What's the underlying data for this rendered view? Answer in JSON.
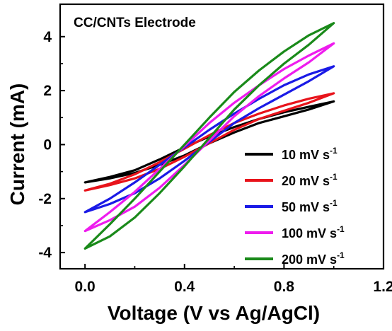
{
  "chart_data": {
    "type": "line",
    "title": "CC/CNTs Electrode",
    "xlabel": "Voltage (V vs Ag/AgCl)",
    "ylabel": "Current (mA)",
    "xlim": [
      -0.1,
      1.2
    ],
    "ylim": [
      -4.6,
      5.2
    ],
    "x_ticks": [
      0.0,
      0.4,
      0.8,
      1.2
    ],
    "x_tick_labels": [
      "0.0",
      "0.4",
      "0.8",
      "1.2"
    ],
    "y_ticks": [
      -4,
      -2,
      0,
      2,
      4
    ],
    "y_tick_labels": [
      "-4",
      "-2",
      "0",
      "2",
      "4"
    ],
    "grid": false,
    "legend_position": "bottom-right",
    "series": [
      {
        "name": "10 mV s-1",
        "label_main": "10 mV s",
        "label_sup": "-1",
        "color": "#000000",
        "anodic": [
          [
            0.0,
            -1.4
          ],
          [
            0.1,
            -1.2
          ],
          [
            0.2,
            -0.95
          ],
          [
            0.3,
            -0.55
          ],
          [
            0.4,
            -0.1
          ],
          [
            0.5,
            0.3
          ],
          [
            0.6,
            0.65
          ],
          [
            0.7,
            0.95
          ],
          [
            0.8,
            1.2
          ],
          [
            0.9,
            1.4
          ],
          [
            1.0,
            1.6
          ]
        ],
        "cathodic": [
          [
            1.0,
            1.6
          ],
          [
            0.9,
            1.3
          ],
          [
            0.8,
            1.05
          ],
          [
            0.7,
            0.8
          ],
          [
            0.6,
            0.45
          ],
          [
            0.5,
            0.05
          ],
          [
            0.4,
            -0.4
          ],
          [
            0.3,
            -0.75
          ],
          [
            0.2,
            -1.05
          ],
          [
            0.1,
            -1.25
          ],
          [
            0.0,
            -1.4
          ]
        ]
      },
      {
        "name": "20 mV s-1",
        "label_main": "20 mV s",
        "label_sup": "-1",
        "color": "#e8131b",
        "anodic": [
          [
            0.0,
            -1.7
          ],
          [
            0.1,
            -1.45
          ],
          [
            0.2,
            -1.1
          ],
          [
            0.3,
            -0.65
          ],
          [
            0.4,
            -0.15
          ],
          [
            0.5,
            0.35
          ],
          [
            0.6,
            0.8
          ],
          [
            0.7,
            1.15
          ],
          [
            0.8,
            1.45
          ],
          [
            0.9,
            1.7
          ],
          [
            1.0,
            1.9
          ]
        ],
        "cathodic": [
          [
            1.0,
            1.9
          ],
          [
            0.9,
            1.55
          ],
          [
            0.8,
            1.25
          ],
          [
            0.7,
            0.95
          ],
          [
            0.6,
            0.55
          ],
          [
            0.5,
            0.05
          ],
          [
            0.4,
            -0.45
          ],
          [
            0.3,
            -0.9
          ],
          [
            0.2,
            -1.25
          ],
          [
            0.1,
            -1.5
          ],
          [
            0.0,
            -1.7
          ]
        ]
      },
      {
        "name": "50 mV s-1",
        "label_main": "50 mV s",
        "label_sup": "-1",
        "color": "#1a1ae6",
        "anodic": [
          [
            0.0,
            -2.5
          ],
          [
            0.1,
            -2.0
          ],
          [
            0.2,
            -1.4
          ],
          [
            0.3,
            -0.75
          ],
          [
            0.4,
            -0.1
          ],
          [
            0.5,
            0.55
          ],
          [
            0.6,
            1.15
          ],
          [
            0.7,
            1.7
          ],
          [
            0.8,
            2.2
          ],
          [
            0.9,
            2.6
          ],
          [
            1.0,
            2.9
          ]
        ],
        "cathodic": [
          [
            1.0,
            2.9
          ],
          [
            0.9,
            2.35
          ],
          [
            0.8,
            1.85
          ],
          [
            0.7,
            1.35
          ],
          [
            0.6,
            0.8
          ],
          [
            0.5,
            0.1
          ],
          [
            0.4,
            -0.6
          ],
          [
            0.3,
            -1.25
          ],
          [
            0.2,
            -1.8
          ],
          [
            0.1,
            -2.2
          ],
          [
            0.0,
            -2.5
          ]
        ]
      },
      {
        "name": "100 mV s-1",
        "label_main": "100 mV s",
        "label_sup": "-1",
        "color": "#ee1cee",
        "anodic": [
          [
            0.0,
            -3.2
          ],
          [
            0.1,
            -2.5
          ],
          [
            0.2,
            -1.75
          ],
          [
            0.3,
            -0.9
          ],
          [
            0.4,
            -0.05
          ],
          [
            0.5,
            0.8
          ],
          [
            0.6,
            1.55
          ],
          [
            0.7,
            2.2
          ],
          [
            0.8,
            2.8
          ],
          [
            0.9,
            3.3
          ],
          [
            1.0,
            3.75
          ]
        ],
        "cathodic": [
          [
            1.0,
            3.75
          ],
          [
            0.9,
            3.05
          ],
          [
            0.8,
            2.45
          ],
          [
            0.7,
            1.8
          ],
          [
            0.6,
            1.05
          ],
          [
            0.5,
            0.15
          ],
          [
            0.4,
            -0.75
          ],
          [
            0.3,
            -1.6
          ],
          [
            0.2,
            -2.3
          ],
          [
            0.1,
            -2.8
          ],
          [
            0.0,
            -3.2
          ]
        ]
      },
      {
        "name": "200 mV s-1",
        "label_main": "200 mV s",
        "label_sup": "-1",
        "color": "#1a8a1a",
        "anodic": [
          [
            0.0,
            -3.85
          ],
          [
            0.1,
            -2.95
          ],
          [
            0.2,
            -2.0
          ],
          [
            0.3,
            -1.0
          ],
          [
            0.4,
            0.0
          ],
          [
            0.5,
            1.0
          ],
          [
            0.6,
            1.95
          ],
          [
            0.7,
            2.75
          ],
          [
            0.8,
            3.45
          ],
          [
            0.9,
            4.05
          ],
          [
            1.0,
            4.5
          ]
        ],
        "cathodic": [
          [
            1.0,
            4.5
          ],
          [
            0.9,
            3.7
          ],
          [
            0.8,
            3.0
          ],
          [
            0.7,
            2.2
          ],
          [
            0.6,
            1.3
          ],
          [
            0.5,
            0.25
          ],
          [
            0.4,
            -0.8
          ],
          [
            0.3,
            -1.8
          ],
          [
            0.2,
            -2.7
          ],
          [
            0.1,
            -3.4
          ],
          [
            0.0,
            -3.85
          ]
        ]
      }
    ]
  }
}
